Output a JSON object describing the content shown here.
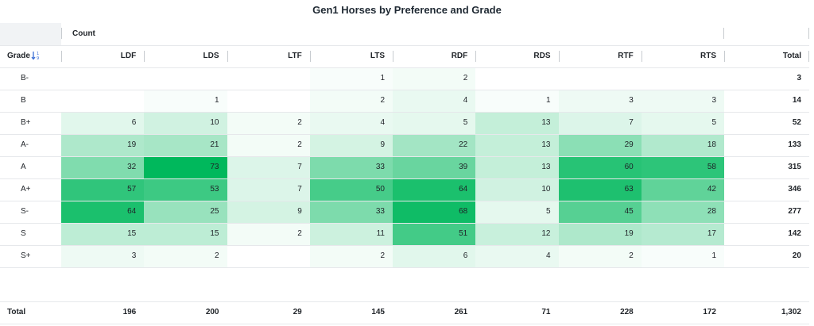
{
  "chart_data": {
    "type": "heatmap",
    "title": "Gen1 Horses by Preference and Grade",
    "measure_label": "Count",
    "row_header": "Grade",
    "total_label": "Total",
    "columns": [
      "LDF",
      "LDS",
      "LTF",
      "LTS",
      "RDF",
      "RDS",
      "RTF",
      "RTS"
    ],
    "rows": [
      "B-",
      "B",
      "B+",
      "A-",
      "A",
      "A+",
      "S-",
      "S",
      "S+"
    ],
    "values": [
      [
        null,
        null,
        null,
        1,
        2,
        null,
        null,
        null
      ],
      [
        null,
        1,
        null,
        2,
        4,
        1,
        3,
        3
      ],
      [
        6,
        10,
        2,
        4,
        5,
        13,
        7,
        5
      ],
      [
        19,
        21,
        2,
        9,
        22,
        13,
        29,
        18
      ],
      [
        32,
        73,
        7,
        33,
        39,
        13,
        60,
        58
      ],
      [
        57,
        53,
        7,
        50,
        64,
        10,
        63,
        42
      ],
      [
        64,
        25,
        9,
        33,
        68,
        5,
        45,
        28
      ],
      [
        15,
        15,
        2,
        11,
        51,
        12,
        19,
        17
      ],
      [
        3,
        2,
        null,
        2,
        6,
        4,
        2,
        1
      ]
    ],
    "row_totals": [
      "3",
      "14",
      "52",
      "133",
      "315",
      "346",
      "277",
      "142",
      "20"
    ],
    "column_totals": [
      "196",
      "200",
      "29",
      "145",
      "261",
      "71",
      "228",
      "172"
    ],
    "grand_total": "1,302",
    "color_scale": {
      "low": "#ffffff",
      "high": "#00b85c"
    }
  },
  "icons": {
    "sort": "sort-ascending-icon"
  },
  "colors": {
    "sort_icon": "#3b6fd6"
  }
}
